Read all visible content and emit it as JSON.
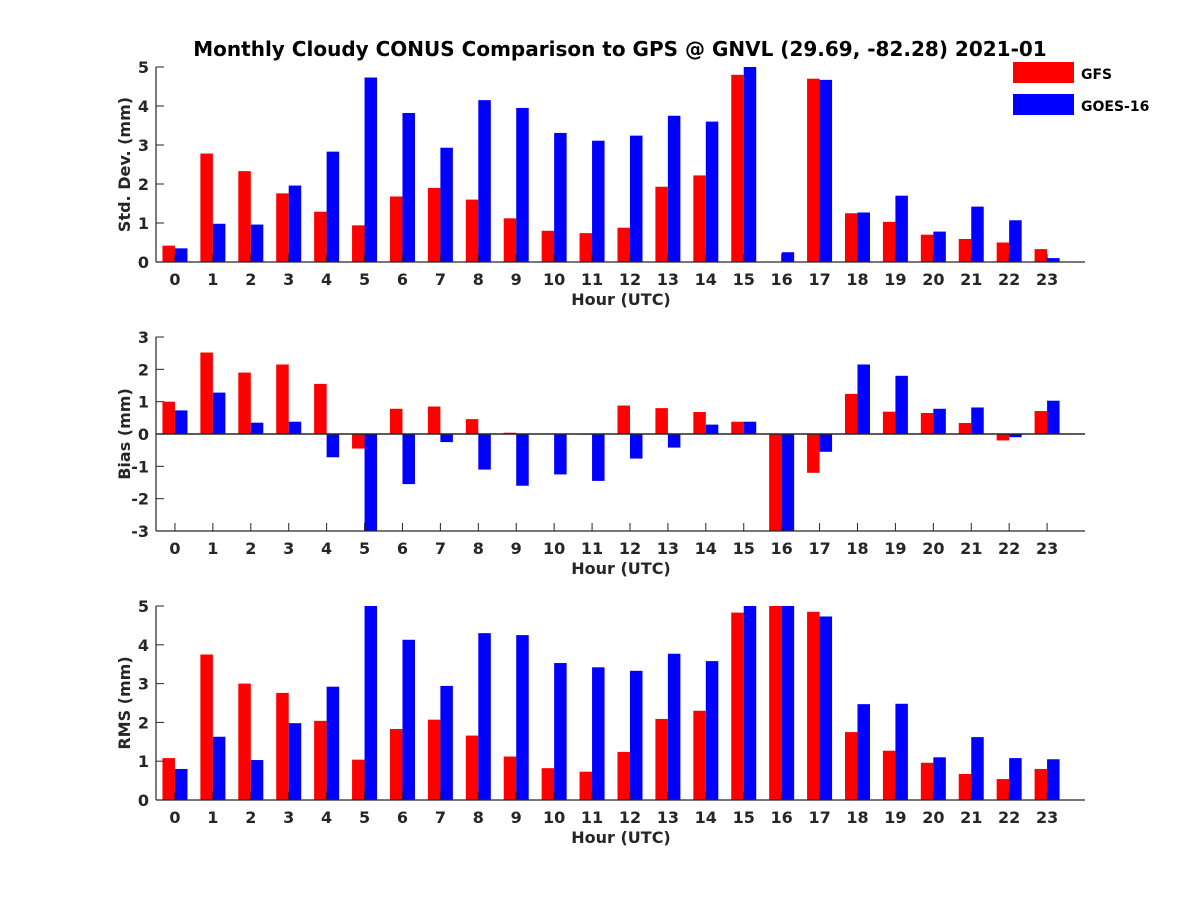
{
  "title": "Monthly Cloudy CONUS Comparison to GPS @ GNVL (29.69, -82.28) 2021-01",
  "colors": {
    "GFS": "#ff0000",
    "GOES-16": "#0000ff",
    "axis": "#262626"
  },
  "legend": {
    "placement": "top-right",
    "entries": [
      "GFS",
      "GOES-16"
    ]
  },
  "chart_data": [
    {
      "type": "bar",
      "xlabel": "Hour (UTC)",
      "ylabel": "Std. Dev. (mm)",
      "ylim": [
        0,
        5
      ],
      "yticks": [
        "0",
        "1",
        "2",
        "3",
        "4",
        "5"
      ],
      "categories": [
        "0",
        "1",
        "2",
        "3",
        "4",
        "5",
        "6",
        "7",
        "8",
        "9",
        "10",
        "11",
        "12",
        "13",
        "14",
        "15",
        "16",
        "17",
        "18",
        "19",
        "20",
        "21",
        "22",
        "23"
      ],
      "series": [
        {
          "name": "GFS",
          "color": "#ff0000",
          "values": [
            0.42,
            2.78,
            2.33,
            1.76,
            1.29,
            0.94,
            1.68,
            1.9,
            1.6,
            1.12,
            0.8,
            0.74,
            0.88,
            1.93,
            2.22,
            4.8,
            0,
            4.7,
            1.25,
            1.03,
            0.7,
            0.59,
            0.5,
            0.33
          ]
        },
        {
          "name": "GOES-16",
          "color": "#0000ff",
          "values": [
            0.35,
            0.98,
            0.96,
            1.96,
            2.83,
            4.73,
            3.82,
            2.93,
            4.15,
            3.95,
            3.31,
            3.11,
            3.24,
            3.75,
            3.6,
            5.0,
            0.25,
            4.67,
            1.27,
            1.7,
            0.78,
            1.42,
            1.07,
            0.1
          ]
        }
      ]
    },
    {
      "type": "bar",
      "xlabel": "Hour (UTC)",
      "ylabel": "Bias (mm)",
      "ylim": [
        -3,
        3
      ],
      "yticks": [
        "-3",
        "-2",
        "-1",
        "0",
        "1",
        "2",
        "3"
      ],
      "categories": [
        "0",
        "1",
        "2",
        "3",
        "4",
        "5",
        "6",
        "7",
        "8",
        "9",
        "10",
        "11",
        "12",
        "13",
        "14",
        "15",
        "16",
        "17",
        "18",
        "19",
        "20",
        "21",
        "22",
        "23"
      ],
      "series": [
        {
          "name": "GFS",
          "color": "#ff0000",
          "values": [
            1.0,
            2.52,
            1.9,
            2.15,
            1.55,
            -0.45,
            0.78,
            0.85,
            0.46,
            0.04,
            0.0,
            -0.02,
            0.88,
            0.8,
            0.68,
            0.38,
            -3.0,
            -1.2,
            1.24,
            0.69,
            0.65,
            0.34,
            -0.2,
            0.71
          ]
        },
        {
          "name": "GOES-16",
          "color": "#0000ff",
          "values": [
            0.73,
            1.28,
            0.35,
            0.38,
            -0.72,
            -3.0,
            -1.55,
            -0.25,
            -1.1,
            -1.6,
            -1.25,
            -1.45,
            -0.76,
            -0.42,
            0.29,
            0.38,
            -3.0,
            -0.55,
            2.15,
            1.8,
            0.78,
            0.82,
            -0.1,
            1.03
          ]
        }
      ]
    },
    {
      "type": "bar",
      "xlabel": "Hour (UTC)",
      "ylabel": "RMS (mm)",
      "ylim": [
        0,
        5
      ],
      "yticks": [
        "0",
        "1",
        "2",
        "3",
        "4",
        "5"
      ],
      "categories": [
        "0",
        "1",
        "2",
        "3",
        "4",
        "5",
        "6",
        "7",
        "8",
        "9",
        "10",
        "11",
        "12",
        "13",
        "14",
        "15",
        "16",
        "17",
        "18",
        "19",
        "20",
        "21",
        "22",
        "23"
      ],
      "series": [
        {
          "name": "GFS",
          "color": "#ff0000",
          "values": [
            1.08,
            3.75,
            3.0,
            2.76,
            2.04,
            1.04,
            1.83,
            2.07,
            1.66,
            1.12,
            0.82,
            0.73,
            1.24,
            2.09,
            2.3,
            4.83,
            5.0,
            4.85,
            1.75,
            1.27,
            0.96,
            0.67,
            0.54,
            0.8
          ]
        },
        {
          "name": "GOES-16",
          "color": "#0000ff",
          "values": [
            0.8,
            1.63,
            1.03,
            1.98,
            2.92,
            5.0,
            4.13,
            2.94,
            4.3,
            4.25,
            3.53,
            3.42,
            3.33,
            3.77,
            3.58,
            5.0,
            5.0,
            4.73,
            2.47,
            2.48,
            1.1,
            1.62,
            1.08,
            1.05
          ]
        }
      ]
    }
  ]
}
